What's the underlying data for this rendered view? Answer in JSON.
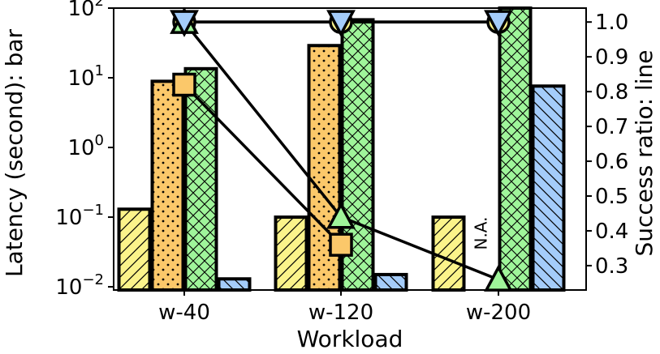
{
  "chart_data": {
    "type": "bar",
    "categories": [
      "w-40",
      "w-120",
      "w-200"
    ],
    "xlabel": "Workload",
    "ylabel": "Latency (second): bar",
    "y2label": "Success ratio: line",
    "yscale": "log",
    "ylim": [
      0.009,
      100
    ],
    "yticks": [
      {
        "value": 0.01,
        "base": "10",
        "exp": "−2"
      },
      {
        "value": 0.1,
        "base": "10",
        "exp": "−1"
      },
      {
        "value": 1,
        "base": "10",
        "exp": "0"
      },
      {
        "value": 10,
        "base": "10",
        "exp": "1"
      },
      {
        "value": 100,
        "base": "10",
        "exp": "2"
      }
    ],
    "y2lim": [
      0.23,
      1.04
    ],
    "y2ticks": [
      "0.3",
      "0.4",
      "0.5",
      "0.6",
      "0.7",
      "0.8",
      "0.9",
      "1.0"
    ],
    "grid": false,
    "bar_series": [
      {
        "color": "#fbf38a",
        "hatch": "diagonal",
        "values": [
          0.13,
          0.1,
          0.1
        ]
      },
      {
        "color": "#fbc86a",
        "hatch": "dots",
        "values": [
          8.9,
          29,
          null
        ]
      },
      {
        "color": "#9ff59a",
        "hatch": "crosshatch",
        "values": [
          13.5,
          68,
          100
        ]
      },
      {
        "color": "#a4ccfa",
        "hatch": "backslash",
        "values": [
          0.013,
          0.015,
          7.6
        ]
      }
    ],
    "missing_label": "N.A.",
    "line_series": [
      {
        "marker": "circle",
        "color": "#fbf38a",
        "values": [
          1.0,
          1.0,
          1.0
        ]
      },
      {
        "marker": "square",
        "color": "#fbc86a",
        "values": [
          0.82,
          0.36,
          null
        ]
      },
      {
        "marker": "triangle-up",
        "color": "#9ff59a",
        "values": [
          1.0,
          0.44,
          0.26
        ]
      },
      {
        "marker": "triangle-down",
        "color": "#a4ccfa",
        "values": [
          1.0,
          1.0,
          1.0
        ]
      }
    ]
  }
}
